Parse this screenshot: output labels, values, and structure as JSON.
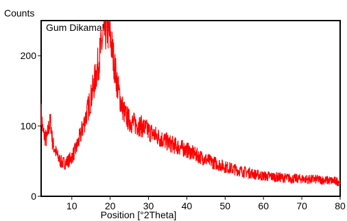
{
  "chart_data": {
    "type": "line",
    "ylabel": "Counts",
    "xlabel": "Position [°2Theta]",
    "sample_label": "Gum Dikamalls",
    "xlim": [
      2,
      80
    ],
    "ylim": [
      0,
      250
    ],
    "x_ticks": [
      10,
      20,
      30,
      40,
      50,
      60,
      70,
      80
    ],
    "x_tick_labels": [
      "10",
      "20",
      "30",
      "40",
      "50",
      "60",
      "70",
      "80"
    ],
    "y_ticks": [
      0,
      100,
      200
    ],
    "y_tick_labels": [
      "0",
      "100",
      "200"
    ],
    "grid": false,
    "series": [
      {
        "color": "#ff0000",
        "x": [
          2,
          2.5,
          3,
          3.5,
          4,
          4.5,
          5,
          5.5,
          6,
          6.5,
          7,
          7.5,
          8,
          9,
          10,
          11,
          12,
          13,
          14,
          15,
          16,
          17,
          17.5,
          18,
          18.5,
          19,
          19.5,
          20,
          20.5,
          21,
          21.5,
          22,
          23,
          24,
          25,
          26,
          27,
          28,
          29,
          30,
          32,
          34,
          36,
          38,
          40,
          42,
          44,
          46,
          48,
          50,
          52,
          54,
          56,
          58,
          60,
          62,
          64,
          66,
          68,
          70,
          72,
          74,
          76,
          78,
          80
        ],
        "values": [
          120,
          90,
          85,
          80,
          100,
          105,
          75,
          68,
          60,
          55,
          50,
          48,
          47,
          50,
          56,
          66,
          82,
          100,
          120,
          140,
          165,
          192,
          208,
          222,
          232,
          238,
          236,
          228,
          210,
          192,
          172,
          155,
          130,
          115,
          108,
          104,
          102,
          100,
          97,
          93,
          86,
          80,
          74,
          70,
          66,
          60,
          55,
          50,
          46,
          42,
          39,
          36,
          34,
          31,
          29,
          28,
          27,
          26,
          25,
          25,
          24,
          24,
          23,
          22,
          21
        ]
      }
    ]
  }
}
